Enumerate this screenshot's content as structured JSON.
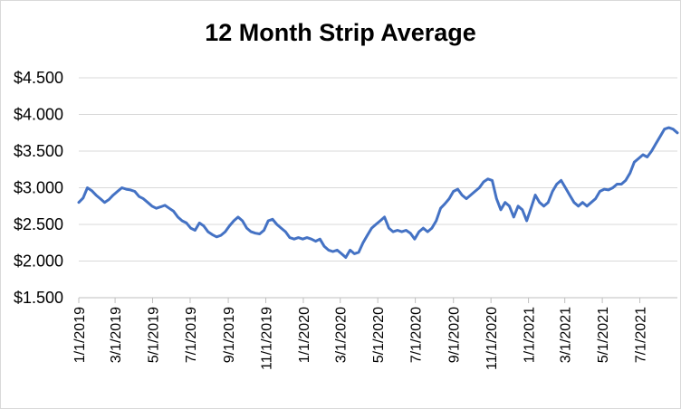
{
  "chart_data": {
    "type": "line",
    "title": "12 Month Strip Average",
    "xlabel": "",
    "ylabel": "",
    "x_range": [
      "1/1/2019",
      "8/31/2021"
    ],
    "ylim": [
      1.5,
      4.5
    ],
    "yticks": [
      1.5,
      2.0,
      2.5,
      3.0,
      3.5,
      4.0,
      4.5
    ],
    "ytick_labels": [
      "$1.500",
      "$2.000",
      "$2.500",
      "$3.000",
      "$3.500",
      "$4.000",
      "$4.500"
    ],
    "xtick_dates": [
      "1/1/2019",
      "3/1/2019",
      "5/1/2019",
      "7/1/2019",
      "9/1/2019",
      "11/1/2019",
      "1/1/2020",
      "3/1/2020",
      "5/1/2020",
      "7/1/2020",
      "9/1/2020",
      "11/1/2020",
      "1/1/2021",
      "3/1/2021",
      "5/1/2021",
      "7/1/2021"
    ],
    "grid": true,
    "legend": "none",
    "line_color": "#4472c4",
    "series": [
      {
        "points": [
          [
            "2019-01-01",
            2.8
          ],
          [
            "2019-01-08",
            2.86
          ],
          [
            "2019-01-15",
            3.0
          ],
          [
            "2019-01-22",
            2.96
          ],
          [
            "2019-01-29",
            2.9
          ],
          [
            "2019-02-05",
            2.85
          ],
          [
            "2019-02-12",
            2.8
          ],
          [
            "2019-02-19",
            2.84
          ],
          [
            "2019-02-26",
            2.9
          ],
          [
            "2019-03-05",
            2.95
          ],
          [
            "2019-03-12",
            3.0
          ],
          [
            "2019-03-19",
            2.98
          ],
          [
            "2019-03-26",
            2.97
          ],
          [
            "2019-04-02",
            2.95
          ],
          [
            "2019-04-09",
            2.88
          ],
          [
            "2019-04-16",
            2.85
          ],
          [
            "2019-04-23",
            2.8
          ],
          [
            "2019-04-30",
            2.75
          ],
          [
            "2019-05-07",
            2.72
          ],
          [
            "2019-05-14",
            2.74
          ],
          [
            "2019-05-21",
            2.76
          ],
          [
            "2019-05-28",
            2.72
          ],
          [
            "2019-06-04",
            2.68
          ],
          [
            "2019-06-11",
            2.6
          ],
          [
            "2019-06-18",
            2.55
          ],
          [
            "2019-06-25",
            2.52
          ],
          [
            "2019-07-02",
            2.45
          ],
          [
            "2019-07-09",
            2.42
          ],
          [
            "2019-07-16",
            2.52
          ],
          [
            "2019-07-23",
            2.48
          ],
          [
            "2019-07-30",
            2.4
          ],
          [
            "2019-08-06",
            2.36
          ],
          [
            "2019-08-13",
            2.33
          ],
          [
            "2019-08-20",
            2.35
          ],
          [
            "2019-08-27",
            2.4
          ],
          [
            "2019-09-03",
            2.48
          ],
          [
            "2019-09-10",
            2.55
          ],
          [
            "2019-09-17",
            2.6
          ],
          [
            "2019-09-24",
            2.55
          ],
          [
            "2019-10-01",
            2.45
          ],
          [
            "2019-10-08",
            2.4
          ],
          [
            "2019-10-15",
            2.38
          ],
          [
            "2019-10-22",
            2.37
          ],
          [
            "2019-10-29",
            2.42
          ],
          [
            "2019-11-05",
            2.55
          ],
          [
            "2019-11-12",
            2.57
          ],
          [
            "2019-11-19",
            2.5
          ],
          [
            "2019-11-26",
            2.45
          ],
          [
            "2019-12-03",
            2.4
          ],
          [
            "2019-12-10",
            2.32
          ],
          [
            "2019-12-17",
            2.3
          ],
          [
            "2019-12-24",
            2.32
          ],
          [
            "2019-12-31",
            2.3
          ],
          [
            "2020-01-07",
            2.32
          ],
          [
            "2020-01-14",
            2.3
          ],
          [
            "2020-01-21",
            2.27
          ],
          [
            "2020-01-28",
            2.3
          ],
          [
            "2020-02-04",
            2.2
          ],
          [
            "2020-02-11",
            2.15
          ],
          [
            "2020-02-18",
            2.13
          ],
          [
            "2020-02-25",
            2.15
          ],
          [
            "2020-03-03",
            2.1
          ],
          [
            "2020-03-10",
            2.05
          ],
          [
            "2020-03-17",
            2.15
          ],
          [
            "2020-03-24",
            2.1
          ],
          [
            "2020-03-31",
            2.12
          ],
          [
            "2020-04-07",
            2.25
          ],
          [
            "2020-04-14",
            2.35
          ],
          [
            "2020-04-21",
            2.45
          ],
          [
            "2020-04-28",
            2.5
          ],
          [
            "2020-05-05",
            2.55
          ],
          [
            "2020-05-12",
            2.6
          ],
          [
            "2020-05-19",
            2.45
          ],
          [
            "2020-05-26",
            2.4
          ],
          [
            "2020-06-02",
            2.42
          ],
          [
            "2020-06-09",
            2.4
          ],
          [
            "2020-06-16",
            2.42
          ],
          [
            "2020-06-23",
            2.38
          ],
          [
            "2020-06-30",
            2.3
          ],
          [
            "2020-07-07",
            2.4
          ],
          [
            "2020-07-14",
            2.45
          ],
          [
            "2020-07-21",
            2.4
          ],
          [
            "2020-07-28",
            2.45
          ],
          [
            "2020-08-04",
            2.55
          ],
          [
            "2020-08-11",
            2.72
          ],
          [
            "2020-08-18",
            2.78
          ],
          [
            "2020-08-25",
            2.85
          ],
          [
            "2020-09-01",
            2.95
          ],
          [
            "2020-09-08",
            2.98
          ],
          [
            "2020-09-15",
            2.9
          ],
          [
            "2020-09-22",
            2.85
          ],
          [
            "2020-09-29",
            2.9
          ],
          [
            "2020-10-06",
            2.95
          ],
          [
            "2020-10-13",
            3.0
          ],
          [
            "2020-10-20",
            3.08
          ],
          [
            "2020-10-27",
            3.12
          ],
          [
            "2020-11-03",
            3.1
          ],
          [
            "2020-11-10",
            2.85
          ],
          [
            "2020-11-17",
            2.7
          ],
          [
            "2020-11-24",
            2.8
          ],
          [
            "2020-12-01",
            2.75
          ],
          [
            "2020-12-08",
            2.6
          ],
          [
            "2020-12-15",
            2.75
          ],
          [
            "2020-12-22",
            2.7
          ],
          [
            "2020-12-29",
            2.55
          ],
          [
            "2021-01-05",
            2.72
          ],
          [
            "2021-01-12",
            2.9
          ],
          [
            "2021-01-19",
            2.8
          ],
          [
            "2021-01-26",
            2.75
          ],
          [
            "2021-02-02",
            2.8
          ],
          [
            "2021-02-09",
            2.95
          ],
          [
            "2021-02-16",
            3.05
          ],
          [
            "2021-02-23",
            3.1
          ],
          [
            "2021-03-02",
            3.0
          ],
          [
            "2021-03-09",
            2.9
          ],
          [
            "2021-03-16",
            2.8
          ],
          [
            "2021-03-23",
            2.75
          ],
          [
            "2021-03-30",
            2.8
          ],
          [
            "2021-04-06",
            2.75
          ],
          [
            "2021-04-13",
            2.8
          ],
          [
            "2021-04-20",
            2.85
          ],
          [
            "2021-04-27",
            2.95
          ],
          [
            "2021-05-04",
            2.98
          ],
          [
            "2021-05-11",
            2.97
          ],
          [
            "2021-05-18",
            3.0
          ],
          [
            "2021-05-25",
            3.05
          ],
          [
            "2021-06-01",
            3.05
          ],
          [
            "2021-06-08",
            3.1
          ],
          [
            "2021-06-15",
            3.2
          ],
          [
            "2021-06-22",
            3.35
          ],
          [
            "2021-06-29",
            3.4
          ],
          [
            "2021-07-06",
            3.45
          ],
          [
            "2021-07-13",
            3.42
          ],
          [
            "2021-07-20",
            3.5
          ],
          [
            "2021-07-27",
            3.6
          ],
          [
            "2021-08-03",
            3.7
          ],
          [
            "2021-08-10",
            3.8
          ],
          [
            "2021-08-17",
            3.82
          ],
          [
            "2021-08-24",
            3.8
          ],
          [
            "2021-08-31",
            3.75
          ]
        ]
      }
    ]
  }
}
